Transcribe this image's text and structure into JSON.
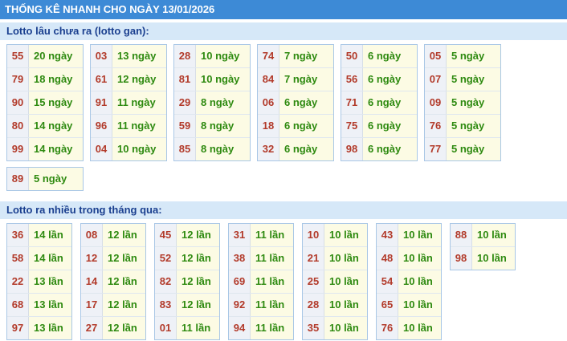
{
  "header": {
    "title": "THỐNG KÊ NHANH CHO NGÀY 13/01/2026"
  },
  "sections": [
    {
      "title": "Lotto lâu chưa ra (lotto gan):",
      "groups": [
        {
          "rows": [
            {
              "num": "55",
              "count": "20 ngày"
            },
            {
              "num": "79",
              "count": "18 ngày"
            },
            {
              "num": "90",
              "count": "15 ngày"
            },
            {
              "num": "80",
              "count": "14 ngày"
            },
            {
              "num": "99",
              "count": "14 ngày"
            }
          ]
        },
        {
          "rows": [
            {
              "num": "03",
              "count": "13 ngày"
            },
            {
              "num": "61",
              "count": "12 ngày"
            },
            {
              "num": "91",
              "count": "11 ngày"
            },
            {
              "num": "96",
              "count": "11 ngày"
            },
            {
              "num": "04",
              "count": "10 ngày"
            }
          ]
        },
        {
          "rows": [
            {
              "num": "28",
              "count": "10 ngày"
            },
            {
              "num": "81",
              "count": "10 ngày"
            },
            {
              "num": "29",
              "count": "8 ngày"
            },
            {
              "num": "59",
              "count": "8 ngày"
            },
            {
              "num": "85",
              "count": "8 ngày"
            }
          ]
        },
        {
          "rows": [
            {
              "num": "74",
              "count": "7 ngày"
            },
            {
              "num": "84",
              "count": "7 ngày"
            },
            {
              "num": "06",
              "count": "6 ngày"
            },
            {
              "num": "18",
              "count": "6 ngày"
            },
            {
              "num": "32",
              "count": "6 ngày"
            }
          ]
        },
        {
          "rows": [
            {
              "num": "50",
              "count": "6 ngày"
            },
            {
              "num": "56",
              "count": "6 ngày"
            },
            {
              "num": "71",
              "count": "6 ngày"
            },
            {
              "num": "75",
              "count": "6 ngày"
            },
            {
              "num": "98",
              "count": "6 ngày"
            }
          ]
        },
        {
          "rows": [
            {
              "num": "05",
              "count": "5 ngày"
            },
            {
              "num": "07",
              "count": "5 ngày"
            },
            {
              "num": "09",
              "count": "5 ngày"
            },
            {
              "num": "76",
              "count": "5 ngày"
            },
            {
              "num": "77",
              "count": "5 ngày"
            }
          ]
        },
        {
          "rows": [
            {
              "num": "89",
              "count": "5 ngày"
            }
          ]
        }
      ]
    },
    {
      "title": "Lotto ra nhiều trong tháng qua:",
      "groups": [
        {
          "rows": [
            {
              "num": "36",
              "count": "14 lần"
            },
            {
              "num": "58",
              "count": "14 lần"
            },
            {
              "num": "22",
              "count": "13 lần"
            },
            {
              "num": "68",
              "count": "13 lần"
            },
            {
              "num": "97",
              "count": "13 lần"
            }
          ]
        },
        {
          "rows": [
            {
              "num": "08",
              "count": "12 lần"
            },
            {
              "num": "12",
              "count": "12 lần"
            },
            {
              "num": "14",
              "count": "12 lần"
            },
            {
              "num": "17",
              "count": "12 lần"
            },
            {
              "num": "27",
              "count": "12 lần"
            }
          ]
        },
        {
          "rows": [
            {
              "num": "45",
              "count": "12 lần"
            },
            {
              "num": "52",
              "count": "12 lần"
            },
            {
              "num": "82",
              "count": "12 lần"
            },
            {
              "num": "83",
              "count": "12 lần"
            },
            {
              "num": "01",
              "count": "11 lần"
            }
          ]
        },
        {
          "rows": [
            {
              "num": "31",
              "count": "11 lần"
            },
            {
              "num": "38",
              "count": "11 lần"
            },
            {
              "num": "69",
              "count": "11 lần"
            },
            {
              "num": "92",
              "count": "11 lần"
            },
            {
              "num": "94",
              "count": "11 lần"
            }
          ]
        },
        {
          "rows": [
            {
              "num": "10",
              "count": "10 lần"
            },
            {
              "num": "21",
              "count": "10 lần"
            },
            {
              "num": "25",
              "count": "10 lần"
            },
            {
              "num": "28",
              "count": "10 lần"
            },
            {
              "num": "35",
              "count": "10 lần"
            }
          ]
        },
        {
          "rows": [
            {
              "num": "43",
              "count": "10 lần"
            },
            {
              "num": "48",
              "count": "10 lần"
            },
            {
              "num": "54",
              "count": "10 lần"
            },
            {
              "num": "65",
              "count": "10 lần"
            },
            {
              "num": "76",
              "count": "10 lần"
            }
          ]
        },
        {
          "rows": [
            {
              "num": "88",
              "count": "10 lần"
            },
            {
              "num": "98",
              "count": "10 lần"
            }
          ]
        }
      ]
    }
  ]
}
